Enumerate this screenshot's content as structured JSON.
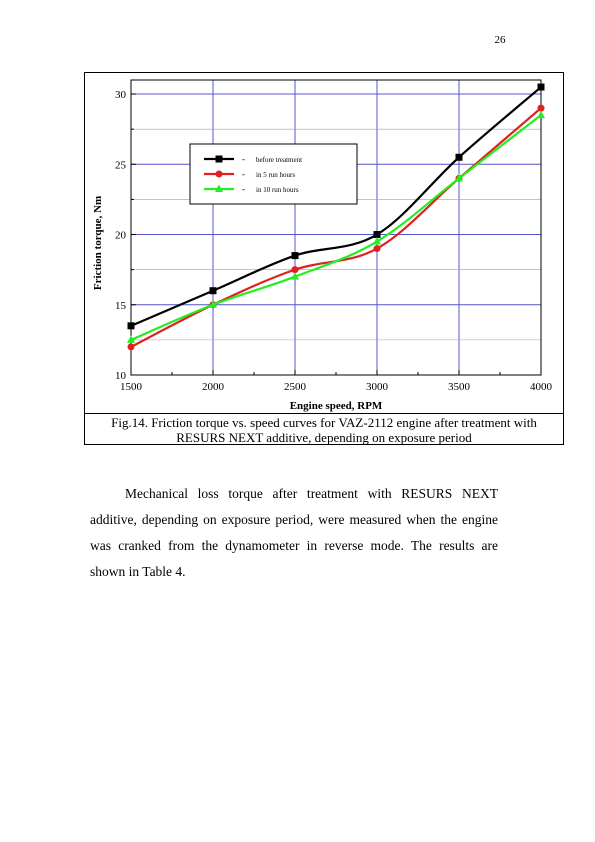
{
  "page_number": "26",
  "figure": {
    "caption_line1": "Fig.14. Friction torque vs. speed curves for VAZ-2112 engine after treatment with",
    "caption_line2": "RESURS NEXT additive, depending on exposure period"
  },
  "body": {
    "paragraph": "Mechanical loss torque after treatment with RESURS NEXT additive, depending on exposure period, were measured when the engine was cranked from the dynamometer in reverse mode. The results are shown in Table 4."
  },
  "chart_data": {
    "type": "line",
    "title": "",
    "xlabel": "Engine speed, RPM",
    "ylabel": "Friction torque, Nm",
    "x": [
      1500,
      2000,
      2500,
      3000,
      3500,
      4000
    ],
    "xlim": [
      1500,
      4000
    ],
    "ylim": [
      10,
      31
    ],
    "xticks": [
      1500,
      2000,
      2500,
      3000,
      3500,
      4000
    ],
    "yticks": [
      10,
      15,
      20,
      25,
      30
    ],
    "grid": true,
    "legend_position": "upper-left",
    "series": [
      {
        "name": "before treatment",
        "color": "#000000",
        "marker": "square",
        "values": [
          13.5,
          16.0,
          18.5,
          20.0,
          25.5,
          30.5
        ]
      },
      {
        "name": "in 5 run hours",
        "color": "#e02020",
        "marker": "circle",
        "values": [
          12.0,
          15.0,
          17.5,
          19.0,
          24.0,
          29.0
        ]
      },
      {
        "name": "in 10 run hours",
        "color": "#22ee22",
        "marker": "triangle",
        "values": [
          12.5,
          15.0,
          17.0,
          19.5,
          24.0,
          28.5
        ]
      }
    ]
  }
}
